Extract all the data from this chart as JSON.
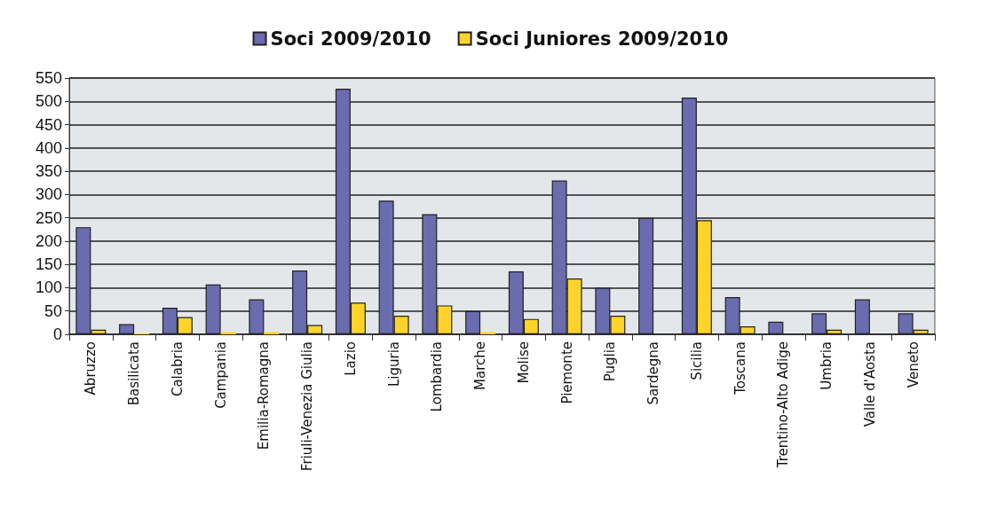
{
  "chart_data": {
    "type": "bar",
    "categories": [
      "Abruzzo",
      "Basilicata",
      "Calabria",
      "Campania",
      "Emilia-Romagna",
      "Friuli-Venezia Giulia",
      "Lazio",
      "Liguria",
      "Lombardia",
      "Marche",
      "Molise",
      "Piemonte",
      "Puglia",
      "Sardegna",
      "Sicilia",
      "Toscana",
      "Trentino-Alto Adige",
      "Umbria",
      "Valle d'Aosta",
      "Veneto"
    ],
    "series": [
      {
        "name": "Soci 2009/2010",
        "color": "#6b6bb0",
        "values": [
          230,
          22,
          57,
          107,
          75,
          137,
          527,
          287,
          258,
          50,
          135,
          330,
          100,
          250,
          508,
          80,
          27,
          45,
          75,
          45
        ]
      },
      {
        "name": "Soci Juniores 2009/2010",
        "color": "#ffd42a",
        "values": [
          10,
          2,
          37,
          5,
          5,
          20,
          68,
          40,
          62,
          5,
          33,
          120,
          40,
          0,
          245,
          17,
          0,
          10,
          0,
          10
        ]
      }
    ],
    "ylim": [
      0,
      550
    ],
    "yticks": [
      0,
      50,
      100,
      150,
      200,
      250,
      300,
      350,
      400,
      450,
      500,
      550
    ],
    "grid": "y",
    "legend": "top"
  }
}
